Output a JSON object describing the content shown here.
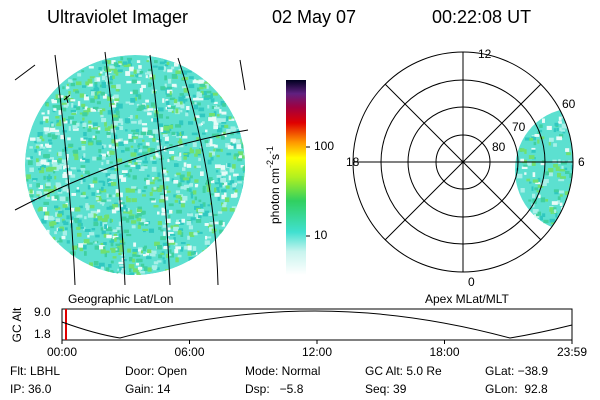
{
  "header": {
    "title": "Ultraviolet Imager",
    "date": "02 May 07",
    "time": "00:22:08 UT"
  },
  "colorbar": {
    "label": [
      "photon cm",
      "-2",
      "s",
      "-1"
    ],
    "ticks": [
      "100",
      "10"
    ]
  },
  "left_panel": {
    "label": "Geographic Lat/Lon"
  },
  "right_panel": {
    "label": "Apex MLat/MLT",
    "mlt_labels": [
      "12",
      "18",
      "6",
      "0"
    ],
    "mlat_labels": [
      "60",
      "70",
      "80"
    ]
  },
  "altitude_plot": {
    "ylabel": "GC Alt",
    "yticks": [
      "9.0",
      "1.8"
    ],
    "xticks": [
      "00:00",
      "06:00",
      "12:00",
      "18:00",
      "23:59"
    ]
  },
  "footer": {
    "rows": [
      [
        "Flt: LBHL",
        "Door: Open",
        "Mode: Normal",
        "GC Alt: 5.0 Re",
        "GLat: −38.9"
      ],
      [
        "IP: 36.0",
        "Gain: 14",
        "Dsp:   −5.8",
        "Seq: 39",
        "GLon:  92.8"
      ]
    ]
  }
}
